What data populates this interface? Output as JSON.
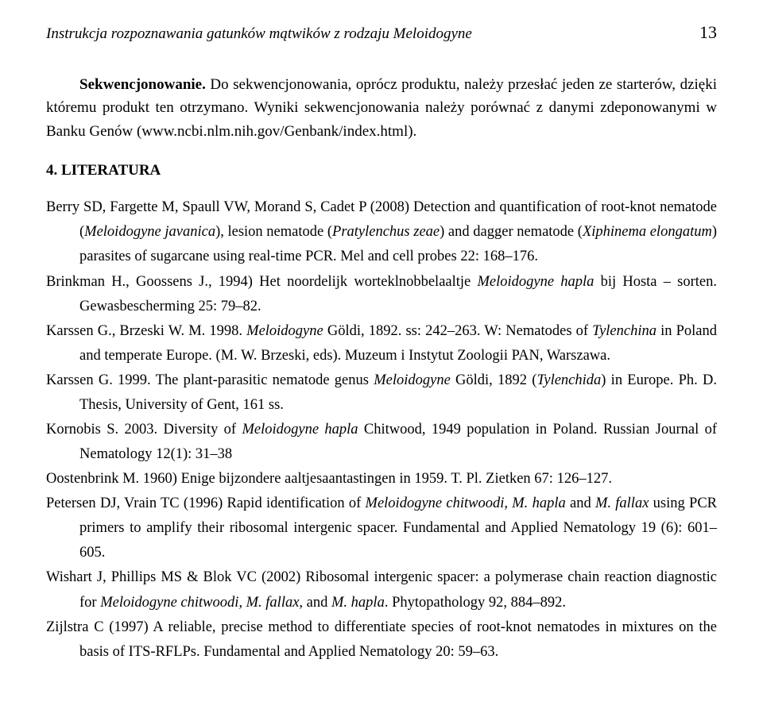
{
  "header": {
    "title": "Instrukcja rozpoznawania gatunków mątwików z rodzaju Meloidogyne",
    "page": "13"
  },
  "intro": {
    "lead": "Sekwencjonowanie.",
    "body1": " Do sekwencjonowania, oprócz produktu, należy przesłać jeden ze starterów, dzięki któremu produkt ten otrzymano. Wyniki sekwencjonowania należy porównać z danymi zdeponowanymi w Banku Genów (www.ncbi.nlm.nih.gov/Genbank/index.html)."
  },
  "section_heading": "4. LITERATURA",
  "refs": {
    "r1": {
      "a": "Berry SD, Fargette M, Spaull VW, Morand S, Cadet P (2008) Detection and quantification of root-knot nematode (",
      "i1": "Meloidogyne javanica",
      "b": "), lesion nematode (",
      "i2": "Pratylenchus zeae",
      "c": ") and dagger nematode (",
      "i3": "Xiphinema elongatum",
      "d": ") parasites of sugarcane using real-time PCR. Mel and cell probes 22: 168–176."
    },
    "r2": {
      "a": "Brinkman  H., Goossens J., 1994) Het noordelijk worteklnobbelaaltje ",
      "i1": "Meloidogyne hapla",
      "b": " bij Hosta – sorten. Gewasbescherming 25: 79–82."
    },
    "r3": {
      "a": "Karssen G., Brzeski W. M. 1998. ",
      "i1": "Meloidogyne",
      "b": " Göldi, 1892. ss: 242–263. W: Nematodes of ",
      "i2": "Tylenchina",
      "c": " in Poland and temperate Europe. (M. W. Brzeski, eds). Muzeum i Instytut Zoologii PAN, Warszawa."
    },
    "r4": {
      "a": "Karssen G. 1999. The plant-parasitic nematode genus ",
      "i1": "Meloidogyne",
      "b": " Göldi, 1892 (",
      "i2": "Tylenchida",
      "c": ") in Europe. Ph. D. Thesis, University of Gent, 161 ss."
    },
    "r5": {
      "a": "Kornobis S. 2003. Diversity of ",
      "i1": "Meloidogyne hapla",
      "b": " Chitwood, 1949 population in Poland. Russian Journal of Nematology 12(1): 31–38"
    },
    "r6": {
      "a": "Oostenbrink M. 1960) Enige bijzondere aaltjesaantastingen in 1959. T. Pl. Zietken 67: 126–127."
    },
    "r7": {
      "a": "Petersen DJ, Vrain TC (1996) Rapid identification of ",
      "i1": "Meloidogyne chitwoodi",
      "b": ", ",
      "i2": "M. hapla",
      "c": " and ",
      "i3": "M. fallax",
      "d": " using PCR primers to amplify their ribosomal intergenic spacer. Fundamental and Applied Nematology 19 (6): 601– 605."
    },
    "r8": {
      "a": "Wishart J, Phillips MS & Blok VC (2002) Ribosomal intergenic spacer: a polymerase chain reaction diagnostic for ",
      "i1": "Meloidogyne chitwoodi, M. fallax",
      "b": ", and ",
      "i2": "M. hapla",
      "c": ". Phytopathology 92, 884–892."
    },
    "r9": {
      "a": "Zijlstra C (1997) A reliable, precise method to differentiate species of root-knot nematodes in mixtures on the basis of ITS-RFLPs. Fundamental and Applied Nematology 20: 59–63."
    }
  }
}
